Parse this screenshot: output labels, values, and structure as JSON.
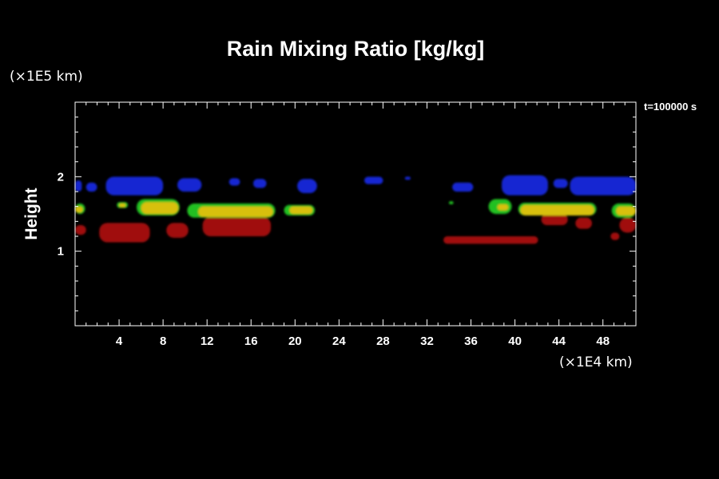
{
  "chart_data": {
    "type": "heatmap",
    "title": "Rain Mixing Ratio [kg/kg]",
    "xlabel": "",
    "ylabel": "Height",
    "x_unit": "(×1E4 km)",
    "y_unit": "(×1E5 km)",
    "time_label": "t=100000 s",
    "xlim": [
      0,
      51
    ],
    "ylim": [
      0,
      3
    ],
    "x_ticks": [
      4,
      8,
      12,
      16,
      20,
      24,
      28,
      32,
      36,
      40,
      44,
      48
    ],
    "y_ticks": [
      1,
      2
    ],
    "background": "#000000",
    "colors": {
      "blue": "#1428d2",
      "green": "#20c020",
      "yellow": "#d8c010",
      "red": "#a01010"
    },
    "regions": [
      {
        "color": "blue",
        "x": [
          0,
          0.6
        ],
        "y": [
          1.8,
          1.95
        ]
      },
      {
        "color": "blue",
        "x": [
          1.0,
          2.0
        ],
        "y": [
          1.8,
          1.92
        ]
      },
      {
        "color": "blue",
        "x": [
          2.8,
          8.0
        ],
        "y": [
          1.75,
          2.0
        ]
      },
      {
        "color": "blue",
        "x": [
          9.3,
          11.5
        ],
        "y": [
          1.8,
          1.98
        ]
      },
      {
        "color": "blue",
        "x": [
          14.0,
          15.0
        ],
        "y": [
          1.88,
          1.98
        ]
      },
      {
        "color": "blue",
        "x": [
          16.2,
          17.4
        ],
        "y": [
          1.85,
          1.97
        ]
      },
      {
        "color": "blue",
        "x": [
          20.2,
          22.0
        ],
        "y": [
          1.78,
          1.97
        ]
      },
      {
        "color": "blue",
        "x": [
          26.3,
          28.0
        ],
        "y": [
          1.9,
          2.0
        ]
      },
      {
        "color": "blue",
        "x": [
          30.0,
          30.5
        ],
        "y": [
          1.96,
          2.0
        ]
      },
      {
        "color": "blue",
        "x": [
          34.3,
          36.2
        ],
        "y": [
          1.8,
          1.92
        ]
      },
      {
        "color": "blue",
        "x": [
          38.8,
          43.0
        ],
        "y": [
          1.75,
          2.02
        ]
      },
      {
        "color": "blue",
        "x": [
          45.0,
          51.0
        ],
        "y": [
          1.75,
          2.0
        ]
      },
      {
        "color": "blue",
        "x": [
          43.5,
          44.8
        ],
        "y": [
          1.85,
          1.97
        ]
      },
      {
        "color": "green",
        "x": [
          0,
          0.9
        ],
        "y": [
          1.5,
          1.64
        ]
      },
      {
        "color": "green",
        "x": [
          3.8,
          4.8
        ],
        "y": [
          1.58,
          1.66
        ]
      },
      {
        "color": "green",
        "x": [
          5.6,
          9.5
        ],
        "y": [
          1.48,
          1.7
        ]
      },
      {
        "color": "green",
        "x": [
          10.2,
          18.2
        ],
        "y": [
          1.45,
          1.64
        ]
      },
      {
        "color": "green",
        "x": [
          19.0,
          21.8
        ],
        "y": [
          1.48,
          1.62
        ]
      },
      {
        "color": "green",
        "x": [
          34.0,
          34.4
        ],
        "y": [
          1.63,
          1.67
        ]
      },
      {
        "color": "green",
        "x": [
          37.6,
          39.7
        ],
        "y": [
          1.5,
          1.7
        ]
      },
      {
        "color": "green",
        "x": [
          40.3,
          47.4
        ],
        "y": [
          1.48,
          1.65
        ]
      },
      {
        "color": "green",
        "x": [
          48.8,
          51.0
        ],
        "y": [
          1.45,
          1.64
        ]
      },
      {
        "color": "yellow",
        "x": [
          0,
          0.7
        ],
        "y": [
          1.52,
          1.6
        ]
      },
      {
        "color": "yellow",
        "x": [
          4.0,
          4.6
        ],
        "y": [
          1.59,
          1.64
        ]
      },
      {
        "color": "yellow",
        "x": [
          6.0,
          9.4
        ],
        "y": [
          1.5,
          1.66
        ]
      },
      {
        "color": "yellow",
        "x": [
          11.2,
          18.0
        ],
        "y": [
          1.46,
          1.6
        ]
      },
      {
        "color": "yellow",
        "x": [
          19.5,
          21.6
        ],
        "y": [
          1.5,
          1.6
        ]
      },
      {
        "color": "yellow",
        "x": [
          38.4,
          39.4
        ],
        "y": [
          1.55,
          1.63
        ]
      },
      {
        "color": "yellow",
        "x": [
          40.5,
          47.2
        ],
        "y": [
          1.48,
          1.62
        ]
      },
      {
        "color": "yellow",
        "x": [
          49.2,
          51.0
        ],
        "y": [
          1.48,
          1.6
        ]
      },
      {
        "color": "red",
        "x": [
          0,
          1.0
        ],
        "y": [
          1.22,
          1.35
        ]
      },
      {
        "color": "red",
        "x": [
          2.2,
          6.8
        ],
        "y": [
          1.12,
          1.38
        ]
      },
      {
        "color": "red",
        "x": [
          8.3,
          10.3
        ],
        "y": [
          1.18,
          1.38
        ]
      },
      {
        "color": "red",
        "x": [
          11.6,
          17.8
        ],
        "y": [
          1.2,
          1.46
        ]
      },
      {
        "color": "red",
        "x": [
          33.5,
          42.1
        ],
        "y": [
          1.1,
          1.2
        ]
      },
      {
        "color": "red",
        "x": [
          42.4,
          44.8
        ],
        "y": [
          1.35,
          1.5
        ]
      },
      {
        "color": "red",
        "x": [
          45.5,
          47.0
        ],
        "y": [
          1.3,
          1.45
        ]
      },
      {
        "color": "red",
        "x": [
          48.7,
          49.5
        ],
        "y": [
          1.15,
          1.25
        ]
      },
      {
        "color": "red",
        "x": [
          49.5,
          51.0
        ],
        "y": [
          1.25,
          1.45
        ]
      }
    ]
  }
}
